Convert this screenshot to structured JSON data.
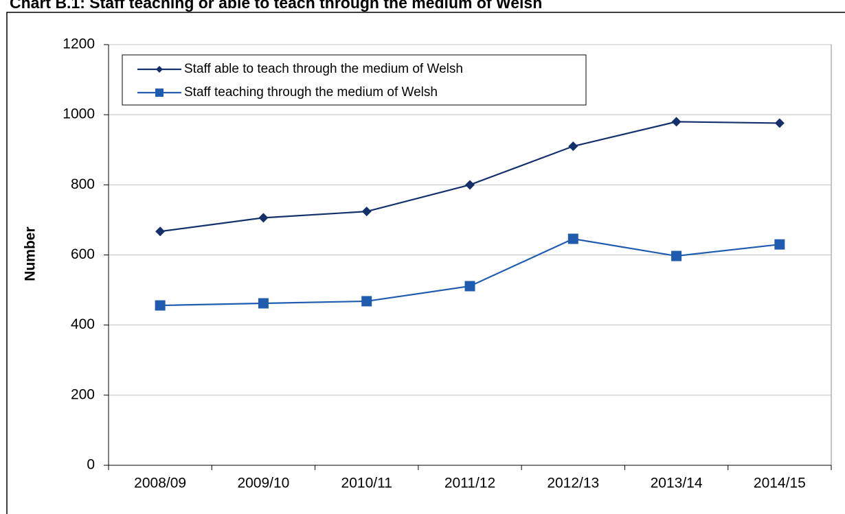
{
  "chart_data": {
    "type": "line",
    "title": "Chart B.1: Staff teaching or able to teach through the medium of Welsh",
    "y_label": "Number",
    "categories": [
      "2008/09",
      "2009/10",
      "2010/11",
      "2011/12",
      "2012/13",
      "2013/14",
      "2014/15"
    ],
    "series": [
      {
        "name": "Staff able to teach through the medium of Welsh",
        "color": "#14306b",
        "marker": "diamond",
        "values": [
          667,
          706,
          724,
          800,
          910,
          980,
          976
        ]
      },
      {
        "name": "Staff teaching through the medium of Welsh",
        "color": "#1f5cb0",
        "marker": "square",
        "values": [
          456,
          462,
          468,
          511,
          646,
          597,
          630
        ]
      }
    ],
    "ylim": [
      0,
      1200
    ],
    "yticks": [
      0,
      200,
      400,
      600,
      800,
      1000,
      1200
    ],
    "grid": true,
    "legend": "top-left"
  }
}
